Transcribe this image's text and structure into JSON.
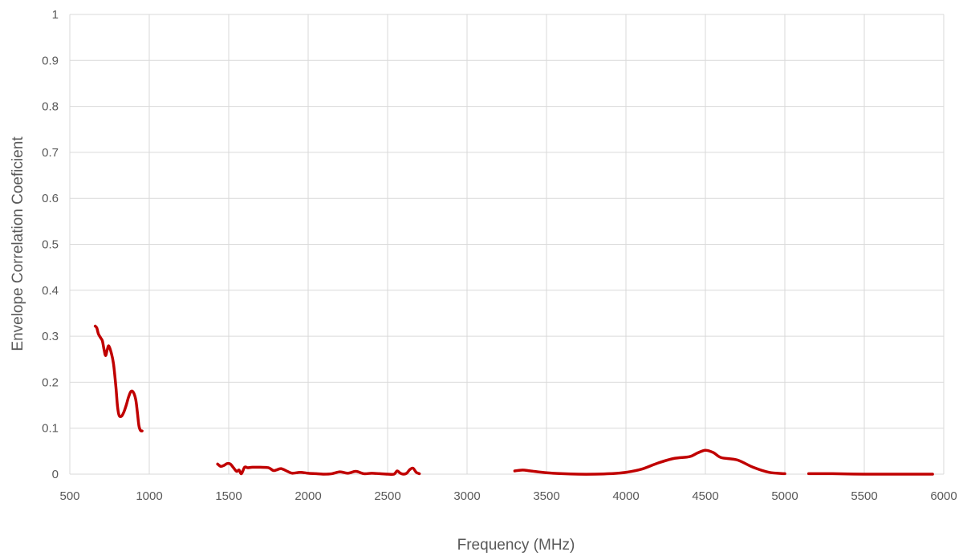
{
  "chart_data": {
    "type": "line",
    "title": "",
    "xlabel": "Frequency (MHz)",
    "ylabel": "Envelope Correlation Coeficient",
    "xlim": [
      500,
      6000
    ],
    "ylim": [
      0,
      1
    ],
    "x_ticks": [
      "500",
      "1000",
      "1500",
      "2000",
      "2500",
      "3000",
      "3500",
      "4000",
      "4500",
      "5000",
      "5500",
      "6000"
    ],
    "y_ticks": [
      "0",
      "0.1",
      "0.2",
      "0.3",
      "0.4",
      "0.5",
      "0.6",
      "0.7",
      "0.8",
      "0.9",
      "1"
    ],
    "grid": true,
    "legend": "none",
    "colors": {
      "series": "#c00000",
      "grid": "#d9d9d9",
      "text": "#595959"
    },
    "series": [
      {
        "segments": [
          {
            "x": [
              660,
              670,
              680,
              695,
              705,
              715,
              725,
              735,
              745,
              760,
              775,
              790,
              800,
              810,
              825,
              840,
              855,
              870,
              885,
              900,
              915,
              925,
              935,
              945,
              955
            ],
            "y": [
              0.322,
              0.318,
              0.305,
              0.296,
              0.29,
              0.272,
              0.258,
              0.27,
              0.279,
              0.265,
              0.24,
              0.19,
              0.148,
              0.128,
              0.126,
              0.135,
              0.15,
              0.168,
              0.18,
              0.178,
              0.162,
              0.135,
              0.105,
              0.095,
              0.094
            ]
          },
          {
            "x": [
              1430,
              1450,
              1470,
              1490,
              1510,
              1530,
              1550,
              1565,
              1580,
              1600,
              1620,
              1650,
              1700,
              1750,
              1780,
              1800,
              1830,
              1870,
              1900,
              1950,
              2000,
              2050,
              2100,
              2150,
              2200,
              2250,
              2300,
              2350,
              2400,
              2450,
              2500,
              2540,
              2560,
              2580,
              2600,
              2620,
              2640,
              2660,
              2680,
              2700
            ],
            "y": [
              0.022,
              0.017,
              0.019,
              0.023,
              0.022,
              0.014,
              0.006,
              0.009,
              0.001,
              0.015,
              0.014,
              0.015,
              0.015,
              0.014,
              0.008,
              0.009,
              0.012,
              0.006,
              0.002,
              0.004,
              0.002,
              0.001,
              0.0,
              0.001,
              0.005,
              0.002,
              0.006,
              0.001,
              0.002,
              0.001,
              0.0,
              0.0,
              0.007,
              0.002,
              0.0,
              0.002,
              0.01,
              0.013,
              0.004,
              0.001
            ]
          },
          {
            "x": [
              3300,
              3350,
              3400,
              3500,
              3600,
              3700,
              3800,
              3900,
              4000,
              4100,
              4200,
              4300,
              4400,
              4450,
              4500,
              4550,
              4600,
              4700,
              4800,
              4900,
              5000
            ],
            "y": [
              0.007,
              0.009,
              0.007,
              0.003,
              0.001,
              0.0,
              0.0,
              0.001,
              0.004,
              0.011,
              0.024,
              0.034,
              0.038,
              0.046,
              0.052,
              0.047,
              0.036,
              0.031,
              0.015,
              0.004,
              0.001
            ]
          },
          {
            "x": [
              5150,
              5300,
              5500,
              5700,
              5930
            ],
            "y": [
              0.001,
              0.001,
              0.0,
              0.0,
              0.0
            ]
          }
        ]
      }
    ]
  }
}
